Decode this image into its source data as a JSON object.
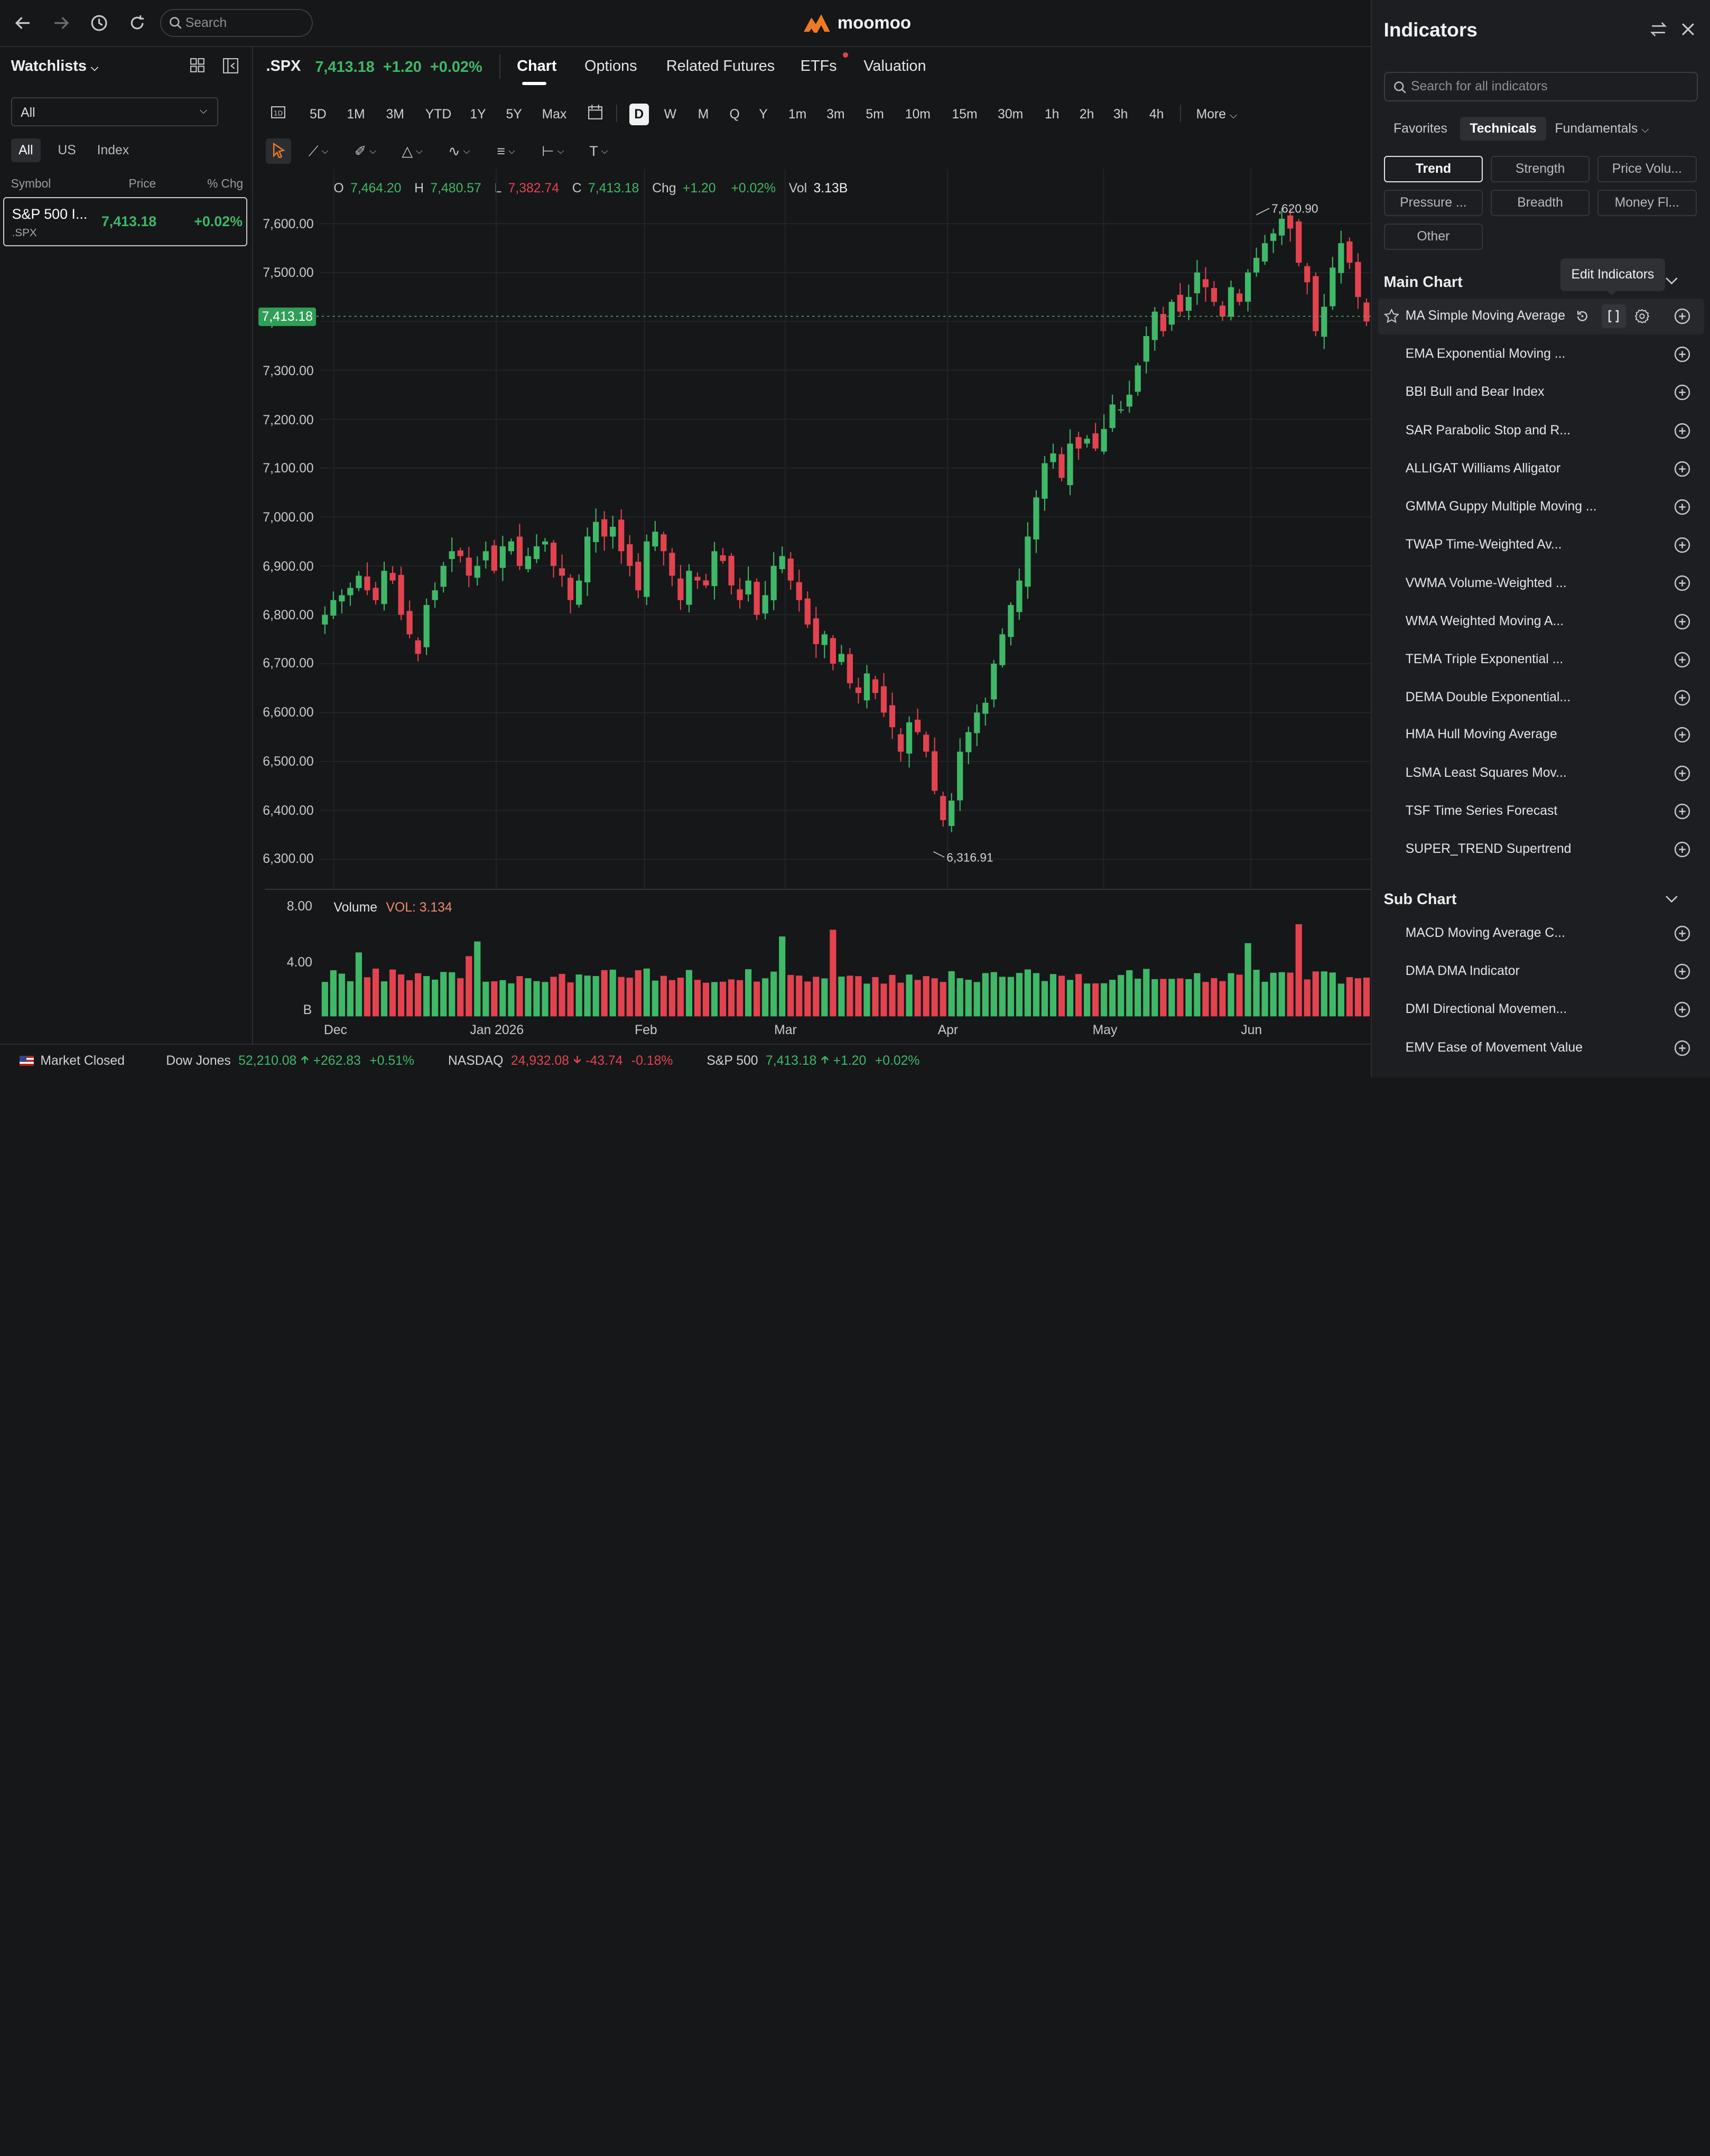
{
  "topbar": {
    "search_placeholder": "Search",
    "logo_text": "moomoo"
  },
  "watchlist": {
    "title": "Watchlists",
    "selected_group": "All",
    "filters": [
      "All",
      "US",
      "Index"
    ],
    "active_filter": "All",
    "columns": [
      "Symbol",
      "Price",
      "% Chg"
    ],
    "rows": [
      {
        "name": "S&P 500 I...",
        "code": ".SPX",
        "price": "7,413.18",
        "chg": "+0.02%"
      }
    ]
  },
  "header": {
    "symbol": ".SPX",
    "price": "7,413.18",
    "change": "+1.20",
    "change_pct": "+0.02%",
    "tabs": [
      "Chart",
      "Options",
      "Related Futures",
      "ETFs",
      "Valuation"
    ],
    "active_tab": "Chart"
  },
  "periods": {
    "ranges": [
      "5D",
      "1M",
      "3M",
      "YTD",
      "1Y",
      "5Y",
      "Max"
    ],
    "intervals": [
      "D",
      "W",
      "M",
      "Q",
      "Y",
      "1m",
      "3m",
      "5m",
      "10m",
      "15m",
      "30m",
      "1h",
      "2h",
      "3h",
      "4h"
    ],
    "active": "D",
    "more": "More"
  },
  "ohlc": {
    "o_label": "O",
    "o": "7,464.20",
    "h_label": "H",
    "h": "7,480.57",
    "l_label": "L",
    "l": "7,382.74",
    "c_label": "C",
    "c": "7,413.18",
    "chg_label": "Chg",
    "chg": "+1.20",
    "chg_pct": "+0.02%",
    "vol_label": "Vol",
    "vol": "3.13B"
  },
  "chart_data": {
    "type": "candlestick",
    "symbol": ".SPX",
    "y_ticks": [
      "7,600.00",
      "7,500.00",
      "7,400.00",
      "7,300.00",
      "7,200.00",
      "7,100.00",
      "7,000.00",
      "6,900.00",
      "6,800.00",
      "6,700.00",
      "6,600.00",
      "6,500.00",
      "6,400.00",
      "6,300.00"
    ],
    "ylim": [
      6270,
      7660
    ],
    "x_ticks": [
      "Dec",
      "Jan 2026",
      "Feb",
      "Mar",
      "Apr",
      "May",
      "Jun"
    ],
    "current_price": "7,413.18",
    "annotations": {
      "high": "7,620.90",
      "low": "6,316.91"
    },
    "approx_closes": [
      6800,
      6830,
      6840,
      6855,
      6880,
      6850,
      6830,
      6890,
      6870,
      6800,
      6760,
      6720,
      6820,
      6850,
      6900,
      6930,
      6920,
      6880,
      6900,
      6930,
      6890,
      6940,
      6950,
      6900,
      6920,
      6940,
      6950,
      6900,
      6880,
      6830,
      6870,
      6960,
      6990,
      6960,
      6980,
      6930,
      6900,
      6850,
      6950,
      6970,
      6930,
      6880,
      6830,
      6890,
      6870,
      6860,
      6930,
      6910,
      6860,
      6830,
      6870,
      6800,
      6840,
      6900,
      6920,
      6870,
      6830,
      6780,
      6740,
      6760,
      6700,
      6720,
      6660,
      6640,
      6680,
      6640,
      6600,
      6570,
      6520,
      6580,
      6560,
      6520,
      6440,
      6380,
      6420,
      6520,
      6560,
      6600,
      6620,
      6700,
      6760,
      6820,
      6870,
      6960,
      7040,
      7110,
      7130,
      7080,
      7150,
      7140,
      7160,
      7140,
      7180,
      7230,
      7220,
      7250,
      7310,
      7370,
      7420,
      7380,
      7440,
      7420,
      7450,
      7500,
      7470,
      7440,
      7410,
      7470,
      7440,
      7500,
      7530,
      7560,
      7580,
      7610,
      7590,
      7520,
      7480,
      7380,
      7430,
      7510,
      7560,
      7520,
      7450,
      7400
    ],
    "volume": {
      "label": "Volume",
      "value_label": "VOL: 3.134",
      "y_ticks": [
        "8.00",
        "4.00",
        "B"
      ]
    }
  },
  "bottom_bar": {
    "market_status": "Market Closed",
    "indices": [
      {
        "name": "Dow Jones",
        "value": "52,210.08",
        "change": "+262.83",
        "pct": "+0.51%",
        "dir": "up"
      },
      {
        "name": "NASDAQ",
        "value": "24,932.08",
        "change": "-43.74",
        "pct": "-0.18%",
        "dir": "down"
      },
      {
        "name": "S&P 500",
        "value": "7,413.18",
        "change": "+1.20",
        "pct": "+0.02%",
        "dir": "up"
      }
    ]
  },
  "indicators": {
    "title": "Indicators",
    "search_placeholder": "Search for all indicators",
    "tabs": [
      "Favorites",
      "Technicals",
      "Fundamentals"
    ],
    "active_tab": "Technicals",
    "categories": [
      "Trend",
      "Strength",
      "Price Volu...",
      "Pressure ...",
      "Breadth",
      "Money Fl...",
      "Other"
    ],
    "active_category": "Trend",
    "main_chart_title": "Main Chart",
    "tooltip": "Edit Indicators",
    "main_items": [
      "MA Simple Moving Average",
      "EMA Exponential Moving ...",
      "BBI Bull and Bear Index",
      "SAR Parabolic Stop and R...",
      "ALLIGAT Williams Alligator",
      "GMMA Guppy Multiple Moving ...",
      "TWAP Time-Weighted Av...",
      "VWMA Volume-Weighted ...",
      "WMA Weighted Moving A...",
      "TEMA Triple Exponential ...",
      "DEMA Double Exponential...",
      "HMA Hull Moving Average",
      "LSMA Least Squares Mov...",
      "TSF Time Series Forecast",
      "SUPER_TREND Supertrend"
    ],
    "sub_chart_title": "Sub Chart",
    "sub_items": [
      "MACD Moving Average C...",
      "DMA DMA Indicator",
      "DMI Directional Movemen...",
      "EMV Ease of Movement Value"
    ]
  },
  "colors": {
    "up": "#3fb868",
    "down": "#e2434f",
    "bg": "#161719",
    "panel": "#1d1e21"
  }
}
